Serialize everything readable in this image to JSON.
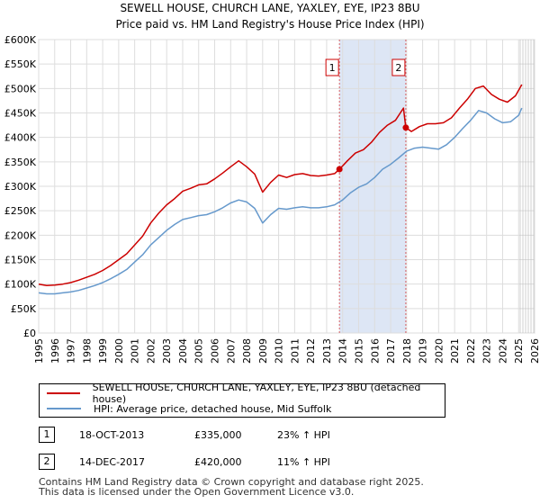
{
  "chart_data": {
    "type": "line",
    "title": "SEWELL HOUSE, CHURCH LANE, YAXLEY, EYE, IP23 8BU",
    "subtitle": "Price paid vs. HM Land Registry's House Price Index (HPI)",
    "xlabel": "",
    "ylabel": "",
    "xlim": [
      1995,
      2026
    ],
    "ylim": [
      0,
      600000
    ],
    "x_ticks": [
      "1995",
      "1996",
      "1997",
      "1998",
      "1999",
      "2000",
      "2001",
      "2002",
      "2003",
      "2004",
      "2005",
      "2006",
      "2007",
      "2008",
      "2009",
      "2010",
      "2011",
      "2012",
      "2013",
      "2014",
      "2015",
      "2016",
      "2017",
      "2018",
      "2019",
      "2020",
      "2021",
      "2022",
      "2023",
      "2024",
      "2025",
      "2026"
    ],
    "y_ticks": [
      "£0",
      "£50K",
      "£100K",
      "£150K",
      "£200K",
      "£250K",
      "£300K",
      "£350K",
      "£400K",
      "£450K",
      "£500K",
      "£550K",
      "£600K"
    ],
    "series": [
      {
        "name": "SEWELL HOUSE, CHURCH LANE, YAXLEY, EYE, IP23 8BU (detached house)",
        "color": "#cc0000",
        "x": [
          1995,
          1995.5,
          1996,
          1996.5,
          1997,
          1997.5,
          1998,
          1998.5,
          1999,
          1999.5,
          2000,
          2000.5,
          2001,
          2001.5,
          2002,
          2002.5,
          2003,
          2003.5,
          2004,
          2004.5,
          2005,
          2005.5,
          2006,
          2006.5,
          2007,
          2007.5,
          2008,
          2008.5,
          2009,
          2009.5,
          2010,
          2010.5,
          2011,
          2011.5,
          2012,
          2012.5,
          2013,
          2013.5,
          2013.8,
          2014.3,
          2014.8,
          2015.3,
          2015.8,
          2016.3,
          2016.8,
          2017.3,
          2017.8,
          2017.95,
          2018.3,
          2018.8,
          2019.3,
          2019.8,
          2020.3,
          2020.8,
          2021.3,
          2021.8,
          2022.3,
          2022.8,
          2023.3,
          2023.8,
          2024.3,
          2024.8,
          2025.2
        ],
        "values": [
          100000,
          97000,
          98000,
          100000,
          103000,
          108000,
          114000,
          120000,
          128000,
          138000,
          150000,
          162000,
          180000,
          198000,
          225000,
          245000,
          262000,
          275000,
          290000,
          296000,
          303000,
          305000,
          315000,
          327000,
          340000,
          352000,
          340000,
          325000,
          288000,
          308000,
          323000,
          318000,
          324000,
          326000,
          322000,
          321000,
          323000,
          326000,
          335000,
          352000,
          368000,
          375000,
          390000,
          410000,
          425000,
          435000,
          460000,
          420000,
          412000,
          422000,
          428000,
          428000,
          430000,
          440000,
          460000,
          478000,
          500000,
          505000,
          488000,
          478000,
          472000,
          485000,
          508000
        ]
      },
      {
        "name": "HPI: Average price, detached house, Mid Suffolk",
        "color": "#6699cc",
        "x": [
          1995,
          1995.5,
          1996,
          1996.5,
          1997,
          1997.5,
          1998,
          1998.5,
          1999,
          1999.5,
          2000,
          2000.5,
          2001,
          2001.5,
          2002,
          2002.5,
          2003,
          2003.5,
          2004,
          2004.5,
          2005,
          2005.5,
          2006,
          2006.5,
          2007,
          2007.5,
          2008,
          2008.5,
          2009,
          2009.5,
          2010,
          2010.5,
          2011,
          2011.5,
          2012,
          2012.5,
          2013,
          2013.5,
          2014,
          2014.5,
          2015,
          2015.5,
          2016,
          2016.5,
          2017,
          2017.5,
          2018,
          2018.5,
          2019,
          2019.5,
          2020,
          2020.5,
          2021,
          2021.5,
          2022,
          2022.5,
          2023,
          2023.5,
          2024,
          2024.5,
          2025,
          2025.2
        ],
        "values": [
          82000,
          80000,
          80000,
          82000,
          84000,
          87000,
          92000,
          97000,
          103000,
          111000,
          120000,
          130000,
          145000,
          160000,
          180000,
          195000,
          210000,
          222000,
          232000,
          236000,
          240000,
          242000,
          248000,
          256000,
          266000,
          272000,
          268000,
          255000,
          225000,
          242000,
          255000,
          253000,
          256000,
          258000,
          256000,
          256000,
          258000,
          262000,
          272000,
          287000,
          298000,
          305000,
          318000,
          335000,
          345000,
          358000,
          372000,
          378000,
          380000,
          378000,
          376000,
          385000,
          400000,
          418000,
          435000,
          455000,
          450000,
          438000,
          430000,
          432000,
          445000,
          460000
        ]
      }
    ],
    "annotations": [
      {
        "label": "1",
        "x": 2013.8,
        "value": 335000
      },
      {
        "label": "2",
        "x": 2017.95,
        "value": 420000
      }
    ],
    "shaded_range": [
      2013.8,
      2017.95
    ],
    "forecast_from": 2025.1
  },
  "legend": {
    "property": "SEWELL HOUSE, CHURCH LANE, YAXLEY, EYE, IP23 8BU (detached house)",
    "hpi": "HPI: Average price, detached house, Mid Suffolk"
  },
  "sales": [
    {
      "num": "1",
      "date": "18-OCT-2013",
      "price": "£335,000",
      "hpi": "23% ↑ HPI"
    },
    {
      "num": "2",
      "date": "14-DEC-2017",
      "price": "£420,000",
      "hpi": "11% ↑ HPI"
    }
  ],
  "footer": {
    "line1": "Contains HM Land Registry data © Crown copyright and database right 2025.",
    "line2": "This data is licensed under the Open Government Licence v3.0."
  },
  "colors": {
    "property_line": "#cc0000",
    "hpi_line": "#6699cc",
    "shade": "#dde6f5",
    "grid": "#dddddd"
  }
}
